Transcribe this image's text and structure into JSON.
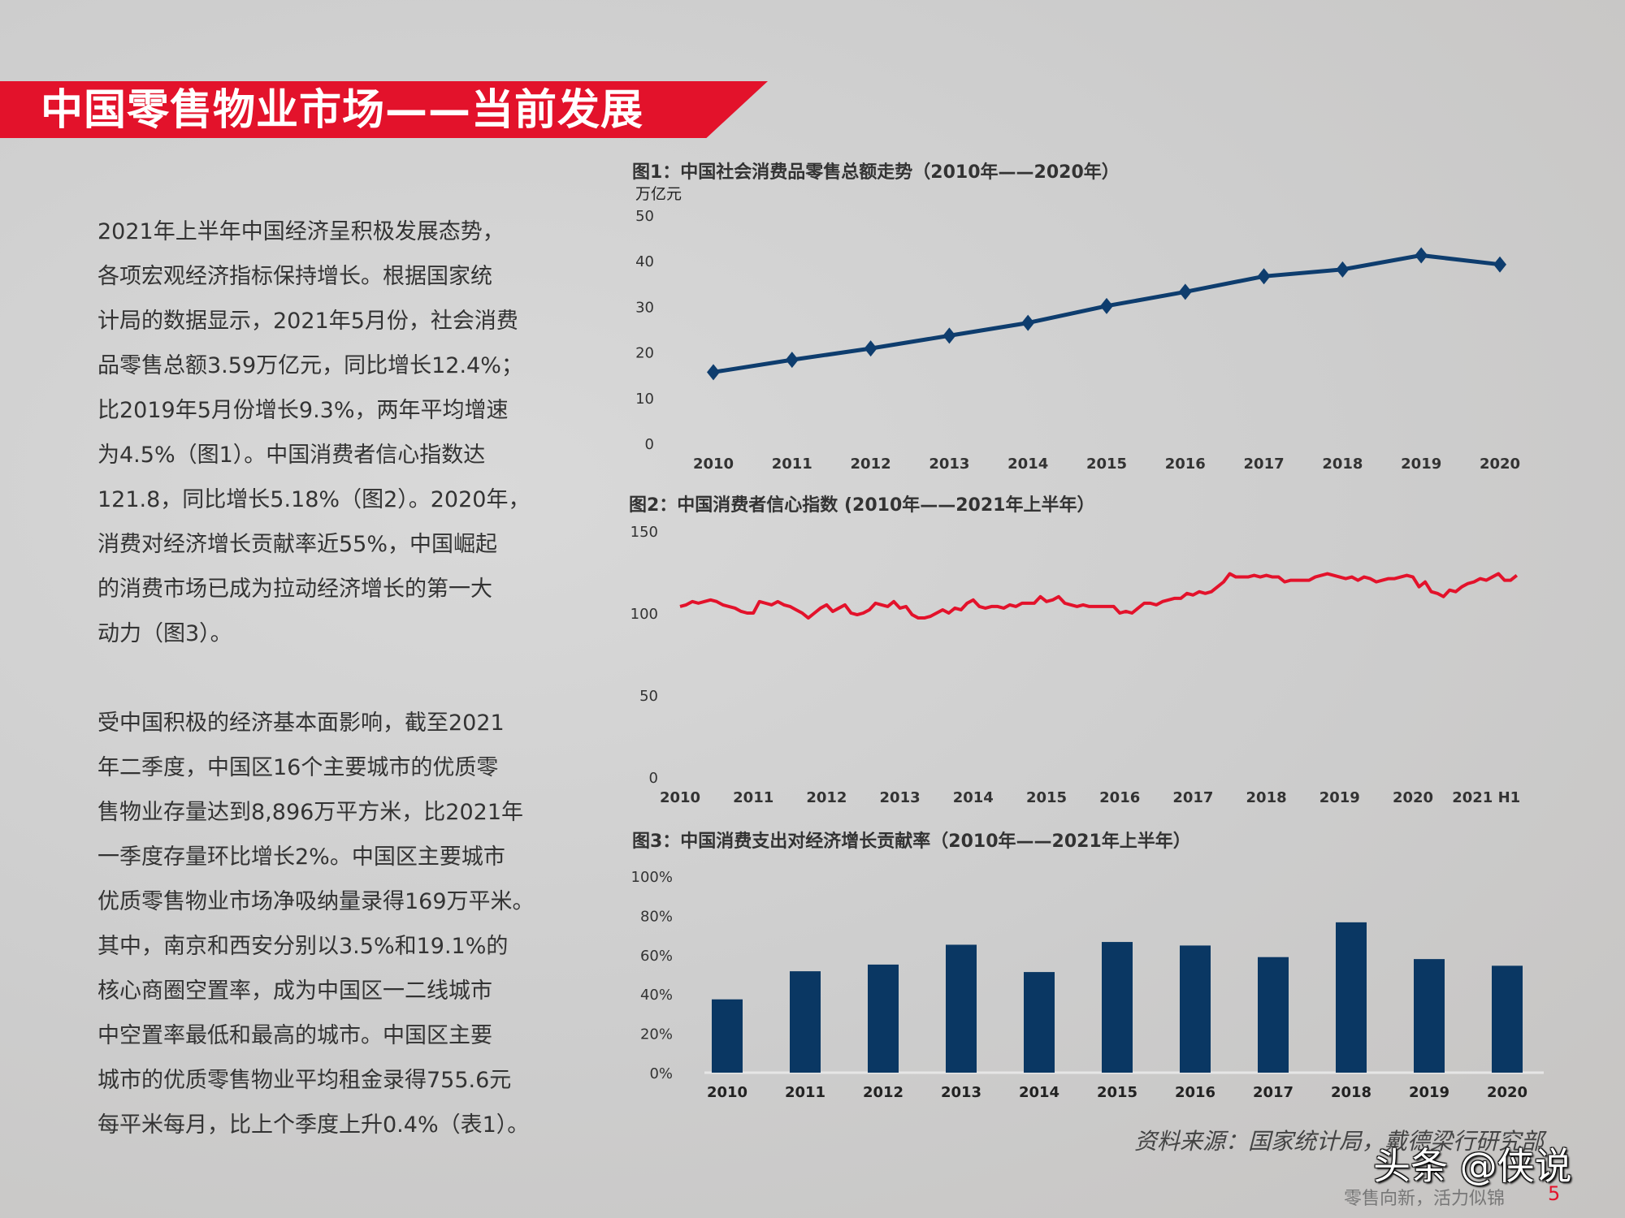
{
  "header": {
    "title": "中国零售物业市场——当前发展",
    "accent": "#e3122b"
  },
  "body": {
    "paragraph1": [
      "2021年上半年中国经济呈积极发展态势，",
      "各项宏观经济指标保持增长。根据国家统",
      "计局的数据显示，2021年5月份，社会消费",
      "品零售总额3.59万亿元，同比增长12.4%；",
      "比2019年5月份增长9.3%，两年平均增速",
      "为4.5%（图1）。中国消费者信心指数达",
      "121.8，同比增长5.18%（图2）。2020年，",
      "消费对经济增长贡献率近55%，中国崛起",
      "的消费市场已成为拉动经济增长的第一大",
      "动力（图3）。"
    ],
    "paragraph2": [
      "受中国积极的经济基本面影响，截至2021",
      "年二季度，中国区16个主要城市的优质零",
      "售物业存量达到8,896万平方米，比2021年",
      "一季度存量环比增长2%。中国区主要城市",
      "优质零售物业市场净吸纳量录得169万平米。",
      "其中，南京和西安分别以3.5%和19.1%的",
      "核心商圈空置率，成为中国区一二线城市",
      "中空置率最低和最高的城市。中国区主要",
      "城市的优质零售物业平均租金录得755.6元",
      "每平米每月，比上个季度上升0.4%（表1）。"
    ]
  },
  "chart_data": [
    {
      "type": "line",
      "title": "图1：中国社会消费品零售总额走势（2010年——2020年）",
      "ylabel": "万亿元",
      "ylim": [
        0,
        50
      ],
      "yticks": [
        "0",
        "10",
        "20",
        "30",
        "40",
        "50"
      ],
      "grid": false,
      "marker": "diamond",
      "color": "#0e3d6e",
      "categories": [
        "2010",
        "2011",
        "2012",
        "2013",
        "2014",
        "2015",
        "2016",
        "2017",
        "2018",
        "2019",
        "2020"
      ],
      "values": [
        15.6,
        18.3,
        20.8,
        23.6,
        26.4,
        30.1,
        33.2,
        36.6,
        38.1,
        41.2,
        39.2
      ]
    },
    {
      "type": "line",
      "title": "图2：中国消费者信心指数 (2010年——2021年上半年）",
      "ylim": [
        0,
        150
      ],
      "yticks": [
        "0",
        "50",
        "100",
        "150"
      ],
      "grid": false,
      "color": "#e3122b",
      "frequency": "monthly",
      "start": "2010-01",
      "xticks": [
        "2010",
        "2011",
        "2012",
        "2013",
        "2014",
        "2015",
        "2016",
        "2017",
        "2018",
        "2019",
        "2020",
        "2021 H1"
      ],
      "values": [
        104,
        105,
        107,
        106,
        107,
        108,
        107,
        105,
        104,
        103,
        101,
        100,
        100,
        107,
        106,
        105,
        107,
        105,
        104,
        102,
        100,
        97,
        100,
        103,
        105,
        101,
        103,
        105,
        100,
        99,
        100,
        102,
        106,
        105,
        104,
        107,
        103,
        104,
        99,
        97,
        97,
        98,
        100,
        102,
        100,
        103,
        102,
        106,
        108,
        104,
        103,
        104,
        104,
        103,
        105,
        104,
        106,
        106,
        106,
        110,
        107,
        108,
        110,
        106,
        105,
        104,
        105,
        104,
        104,
        104,
        104,
        104,
        100,
        101,
        100,
        103,
        106,
        106,
        105,
        107,
        108,
        109,
        109,
        112,
        111,
        113,
        112,
        113,
        116,
        119,
        124,
        122,
        122,
        122,
        123,
        122,
        123,
        122,
        122,
        119,
        120,
        120,
        120,
        120,
        122,
        123,
        124,
        123,
        122,
        121,
        122,
        120,
        122,
        121,
        119,
        120,
        121,
        121,
        122,
        123,
        122,
        116,
        119,
        113,
        112,
        110,
        114,
        113,
        116,
        118,
        119,
        121,
        120,
        122,
        124,
        120,
        120,
        123
      ]
    },
    {
      "type": "bar",
      "title": "图3：中国消费支出对经济增长贡献率（2010年——2021年上半年）",
      "ylim": [
        0,
        100
      ],
      "yticks": [
        "0%",
        "20%",
        "40%",
        "60%",
        "80%",
        "100%"
      ],
      "grid": false,
      "color": "#0a3763",
      "categories": [
        "2010",
        "2011",
        "2012",
        "2013",
        "2014",
        "2015",
        "2016",
        "2017",
        "2018",
        "2019",
        "2020"
      ],
      "values": [
        37.3,
        51.6,
        55.0,
        65.1,
        51.2,
        66.5,
        64.7,
        58.8,
        76.5,
        57.8,
        54.4
      ]
    }
  ],
  "footer": {
    "source": "资料来源：国家统计局，戴德梁行研究部",
    "watermark": "头条 @侠说",
    "slogan": "零售向新，活力似锦",
    "page": "5"
  }
}
